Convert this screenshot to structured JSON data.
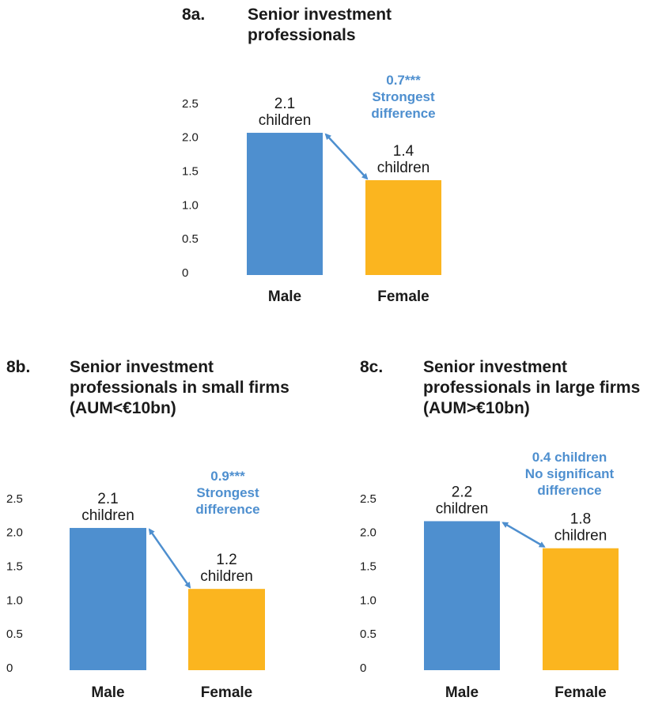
{
  "colors": {
    "male": "#4e8fcf",
    "female": "#fbb51f",
    "annotation": "#4e8fcf",
    "text": "#1a1a1a"
  },
  "chart_data": [
    {
      "id": "8a",
      "type": "bar",
      "number": "8a.",
      "title_lines": [
        "Senior investment",
        "professionals"
      ],
      "categories": [
        "Male",
        "Female"
      ],
      "values": [
        2.1,
        1.4
      ],
      "ylim": [
        0,
        2.5
      ],
      "yticks": [
        "0",
        "0.5",
        "1.0",
        "1.5",
        "2.0",
        "2.5"
      ],
      "value_labels": [
        [
          "2.1",
          "children"
        ],
        [
          "1.4",
          "children"
        ]
      ],
      "difference_lines": [
        "0.7***",
        "Strongest",
        "difference"
      ]
    },
    {
      "id": "8b",
      "type": "bar",
      "number": "8b.",
      "title_lines": [
        "Senior investment",
        "professionals in small firms",
        "(AUM<€10bn)"
      ],
      "categories": [
        "Male",
        "Female"
      ],
      "values": [
        2.1,
        1.2
      ],
      "ylim": [
        0,
        2.5
      ],
      "yticks": [
        "0",
        "0.5",
        "1.0",
        "1.5",
        "2.0",
        "2.5"
      ],
      "value_labels": [
        [
          "2.1",
          "children"
        ],
        [
          "1.2",
          "children"
        ]
      ],
      "difference_lines": [
        "0.9***",
        "Strongest",
        "difference"
      ]
    },
    {
      "id": "8c",
      "type": "bar",
      "number": "8c.",
      "title_lines": [
        "Senior investment",
        "professionals in large firms",
        "(AUM>€10bn)"
      ],
      "categories": [
        "Male",
        "Female"
      ],
      "values": [
        2.2,
        1.8
      ],
      "ylim": [
        0,
        2.5
      ],
      "yticks": [
        "0",
        "0.5",
        "1.0",
        "1.5",
        "2.0",
        "2.5"
      ],
      "value_labels": [
        [
          "2.2",
          "children"
        ],
        [
          "1.8",
          "children"
        ]
      ],
      "difference_lines": [
        "0.4 children",
        "No significant",
        "difference"
      ]
    }
  ]
}
